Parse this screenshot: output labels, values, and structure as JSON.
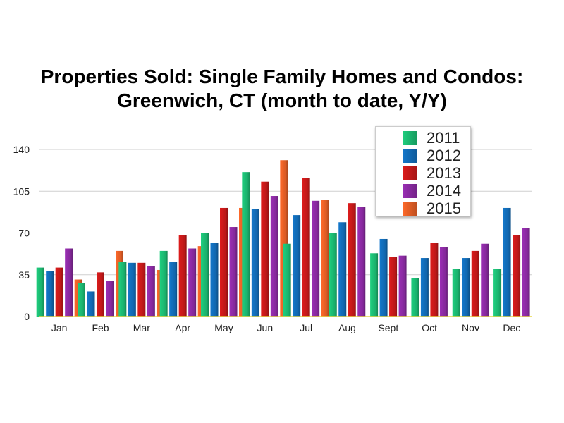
{
  "chart_data": {
    "type": "bar",
    "title_lines": [
      "Properties Sold: Single Family Homes and Condos:",
      "Greenwich, CT (month to date, Y/Y)"
    ],
    "xlabel": "",
    "ylabel": "",
    "ylim": [
      0,
      140
    ],
    "yticks": [
      0,
      35,
      70,
      105,
      140
    ],
    "grid": true,
    "legend_position": "top-right",
    "categories": [
      "Jan",
      "Feb",
      "Mar",
      "Apr",
      "May",
      "Jun",
      "Jul",
      "Aug",
      "Sept",
      "Oct",
      "Nov",
      "Dec"
    ],
    "series": [
      {
        "name": "2011",
        "color": "#1fcf7f",
        "values": [
          41,
          28,
          46,
          55,
          70,
          121,
          61,
          70,
          53,
          32,
          40,
          40
        ]
      },
      {
        "name": "2012",
        "color": "#1478cc",
        "values": [
          38,
          21,
          45,
          46,
          62,
          90,
          85,
          79,
          65,
          49,
          49,
          91
        ]
      },
      {
        "name": "2013",
        "color": "#dd1c1c",
        "values": [
          41,
          37,
          45,
          68,
          91,
          113,
          116,
          95,
          50,
          62,
          55,
          68
        ]
      },
      {
        "name": "2014",
        "color": "#9b2fb5",
        "values": [
          57,
          30,
          42,
          57,
          75,
          101,
          97,
          92,
          51,
          58,
          61,
          74
        ]
      },
      {
        "name": "2015",
        "color": "#ff6a2a",
        "values": [
          31,
          55,
          39,
          59,
          91,
          131,
          98,
          null,
          null,
          null,
          null,
          null
        ]
      }
    ]
  }
}
